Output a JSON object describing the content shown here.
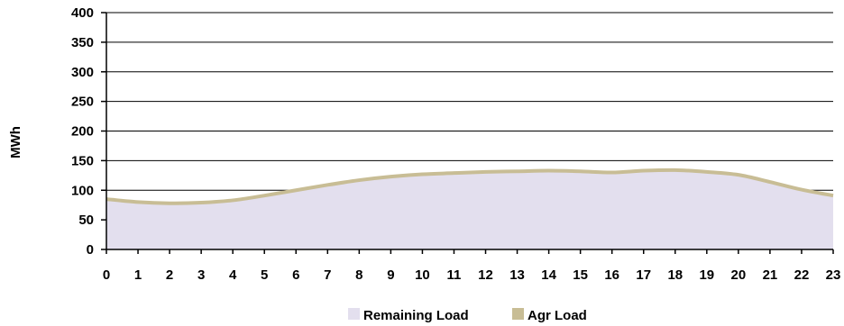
{
  "chart_data": {
    "type": "area",
    "ylabel": "MWh",
    "xlabel": "",
    "x": [
      0,
      1,
      2,
      3,
      4,
      5,
      6,
      7,
      8,
      9,
      10,
      11,
      12,
      13,
      14,
      15,
      16,
      17,
      18,
      19,
      20,
      21,
      22,
      23
    ],
    "ylim": [
      0,
      400
    ],
    "yticks": [
      0,
      50,
      100,
      150,
      200,
      250,
      300,
      350,
      400
    ],
    "grid": true,
    "legend_position": "bottom",
    "series": [
      {
        "name": "Remaining Load",
        "kind": "area",
        "color": "#e3dfee",
        "values": [
          85,
          80,
          78,
          79,
          83,
          91,
          100,
          109,
          117,
          123,
          127,
          129,
          131,
          132,
          133,
          132,
          130,
          133,
          134,
          131,
          126,
          114,
          101,
          91
        ]
      },
      {
        "name": "Agr Load",
        "kind": "line",
        "color": "#c8bd95",
        "values": [
          85,
          80,
          78,
          79,
          83,
          91,
          100,
          109,
          117,
          123,
          127,
          129,
          131,
          132,
          133,
          132,
          130,
          133,
          134,
          131,
          126,
          114,
          101,
          91
        ]
      }
    ]
  }
}
